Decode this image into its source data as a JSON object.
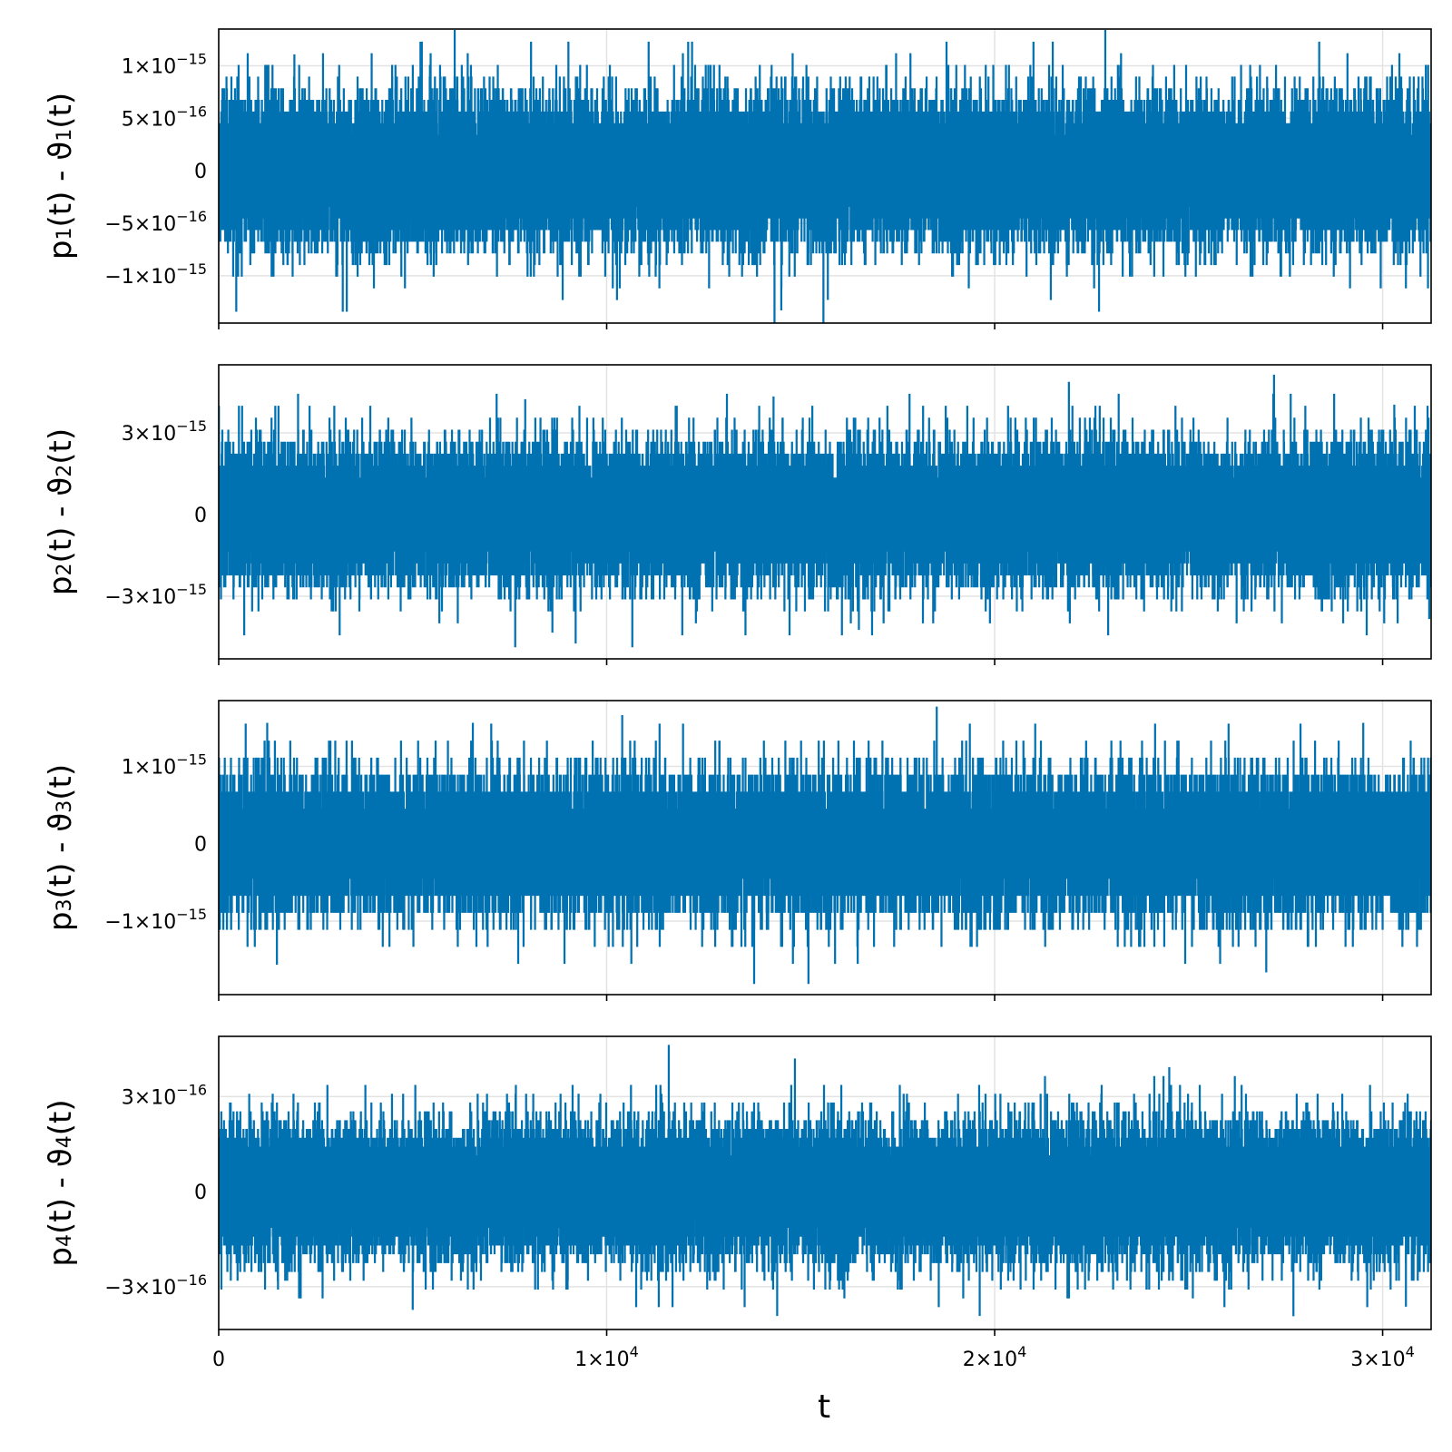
{
  "chart_data": {
    "type": "line",
    "line_color": "#0072b2",
    "grid": true,
    "xlabel": "t",
    "x_range": [
      0,
      31250
    ],
    "x_ticks": [
      {
        "value": 0,
        "mant": "0",
        "exp": ""
      },
      {
        "value": 10000,
        "mant": "1×10",
        "exp": "4"
      },
      {
        "value": 20000,
        "mant": "2×10",
        "exp": "4"
      },
      {
        "value": 30000,
        "mant": "3×10",
        "exp": "4"
      }
    ],
    "panels": [
      {
        "ylabel": {
          "pre": "p",
          "sub1": "1",
          "mid": "(t) - ϑ",
          "sub2": "1",
          "post": "(t)"
        },
        "y_range": [
          -1.45e-15,
          1.35e-15
        ],
        "y_ticks": [
          {
            "value": 1e-15,
            "mant": "1×10",
            "exp": "−15"
          },
          {
            "value": 5e-16,
            "mant": "5×10",
            "exp": "−16"
          },
          {
            "value": 0,
            "mant": "0",
            "exp": ""
          },
          {
            "value": -5e-16,
            "mant": "−5×10",
            "exp": "−16"
          },
          {
            "value": -1e-15,
            "mant": "−1×10",
            "exp": "−15"
          }
        ],
        "series": {
          "n_points": 31250,
          "noise": {
            "std": 3.3e-16,
            "quantum": 1.11e-16
          },
          "peaks": [
            [
              1950,
              1.1e-15
            ],
            [
              5200,
              1.22e-15
            ],
            [
              8050,
              1.22e-15
            ],
            [
              12100,
              1.22e-15
            ],
            [
              21000,
              1.22e-15
            ],
            [
              14500,
              -1.32e-15
            ],
            [
              15700,
              -1.22e-15
            ],
            [
              4000,
              -1.11e-15
            ],
            [
              4800,
              -1.11e-15
            ],
            [
              30600,
              -1.11e-15
            ]
          ]
        }
      },
      {
        "ylabel": {
          "pre": "p",
          "sub1": "2",
          "mid": "(t) - ϑ",
          "sub2": "2",
          "post": "(t)"
        },
        "y_range": [
          -5.3e-15,
          5.5e-15
        ],
        "y_ticks": [
          {
            "value": 3e-15,
            "mant": "3×10",
            "exp": "−15"
          },
          {
            "value": 0,
            "mant": "0",
            "exp": ""
          },
          {
            "value": -3e-15,
            "mant": "−3×10",
            "exp": "−15"
          }
        ],
        "series": {
          "n_points": 31250,
          "noise": {
            "std": 1.2e-15,
            "quantum": 4.4e-16
          },
          "peaks": [
            [
              27200,
              5.1e-15
            ],
            [
              7900,
              4.2e-15
            ],
            [
              14300,
              4.3e-15
            ],
            [
              30300,
              4e-15
            ],
            [
              9200,
              -4.7e-15
            ],
            [
              8600,
              -4.3e-15
            ],
            [
              16500,
              -4.2e-15
            ],
            [
              31200,
              -3.8e-15
            ]
          ]
        }
      },
      {
        "ylabel": {
          "pre": "p",
          "sub1": "3",
          "mid": "(t) - ϑ",
          "sub2": "3",
          "post": "(t)"
        },
        "y_range": [
          -1.95e-15,
          1.85e-15
        ],
        "y_ticks": [
          {
            "value": 1e-15,
            "mant": "1×10",
            "exp": "−15"
          },
          {
            "value": 0,
            "mant": "0",
            "exp": ""
          },
          {
            "value": -1e-15,
            "mant": "−1×10",
            "exp": "−15"
          }
        ],
        "series": {
          "n_points": 31250,
          "noise": {
            "std": 4.2e-16,
            "quantum": 2.2e-16
          },
          "peaks": [
            [
              10400,
              1.65e-15
            ],
            [
              1250,
              1.55e-15
            ],
            [
              6550,
              1.55e-15
            ],
            [
              29500,
              1.55e-15
            ],
            [
              13800,
              -1.8e-15
            ],
            [
              15200,
              -1.8e-15
            ],
            [
              27000,
              -1.65e-15
            ],
            [
              1500,
              -1.55e-15
            ]
          ]
        }
      },
      {
        "ylabel": {
          "pre": "p",
          "sub1": "4",
          "mid": "(t) - ϑ",
          "sub2": "4",
          "post": "(t)"
        },
        "y_range": [
          -4.35e-16,
          4.9e-16
        ],
        "y_ticks": [
          {
            "value": 3e-16,
            "mant": "3×10",
            "exp": "−16"
          },
          {
            "value": 0,
            "mant": "0",
            "exp": ""
          },
          {
            "value": -3e-16,
            "mant": "−3×10",
            "exp": "−16"
          }
        ],
        "series": {
          "n_points": 31250,
          "noise": {
            "std": 1e-16,
            "quantum": 2.78e-17
          },
          "peaks": [
            [
              11600,
              4.6e-16
            ],
            [
              24500,
              3.9e-16
            ],
            [
              27700,
              -3.9e-16
            ],
            [
              5000,
              -3.7e-16
            ],
            [
              30600,
              -3.6e-16
            ]
          ]
        }
      }
    ]
  }
}
